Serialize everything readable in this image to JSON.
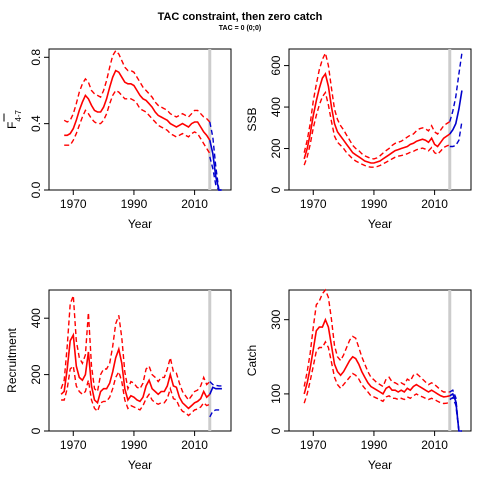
{
  "figure": {
    "title": "TAC constraint, then zero catch",
    "subtitle": "TAC = 0 (0;0)"
  },
  "colors": {
    "historical": "#ff0000",
    "projection": "#0000cc",
    "marker": "#cccccc"
  },
  "chart_data": [
    {
      "type": "line",
      "xlabel": "Year",
      "ylabel": "F",
      "ylabel_sub": "4-7",
      "xlim": [
        1962,
        2022
      ],
      "ylim": [
        0,
        0.85
      ],
      "xticks": [
        1970,
        1990,
        2010
      ],
      "yticks": [
        0.0,
        0.4,
        0.8
      ],
      "ytick_labels": [
        "0.0",
        "0.4",
        "0.8"
      ],
      "vline": 2015,
      "historical": {
        "x": [
          1967,
          1968,
          1969,
          1970,
          1971,
          1972,
          1973,
          1974,
          1975,
          1976,
          1977,
          1978,
          1979,
          1980,
          1981,
          1982,
          1983,
          1984,
          1985,
          1986,
          1987,
          1988,
          1989,
          1990,
          1991,
          1992,
          1993,
          1994,
          1995,
          1996,
          1997,
          1998,
          1999,
          2000,
          2001,
          2002,
          2003,
          2004,
          2005,
          2006,
          2007,
          2008,
          2009,
          2010,
          2011,
          2012,
          2013,
          2014,
          2015
        ],
        "mid": [
          0.33,
          0.33,
          0.34,
          0.37,
          0.42,
          0.48,
          0.53,
          0.57,
          0.55,
          0.51,
          0.48,
          0.47,
          0.47,
          0.5,
          0.55,
          0.62,
          0.68,
          0.72,
          0.71,
          0.68,
          0.65,
          0.64,
          0.64,
          0.63,
          0.6,
          0.57,
          0.55,
          0.54,
          0.52,
          0.5,
          0.47,
          0.45,
          0.44,
          0.43,
          0.42,
          0.4,
          0.39,
          0.38,
          0.39,
          0.4,
          0.39,
          0.38,
          0.4,
          0.41,
          0.41,
          0.38,
          0.35,
          0.33,
          0.3
        ],
        "upper": [
          0.42,
          0.41,
          0.42,
          0.46,
          0.52,
          0.59,
          0.64,
          0.67,
          0.65,
          0.6,
          0.58,
          0.57,
          0.56,
          0.6,
          0.66,
          0.74,
          0.81,
          0.84,
          0.82,
          0.78,
          0.74,
          0.72,
          0.72,
          0.71,
          0.68,
          0.65,
          0.62,
          0.6,
          0.58,
          0.56,
          0.53,
          0.51,
          0.5,
          0.49,
          0.48,
          0.46,
          0.45,
          0.44,
          0.45,
          0.46,
          0.45,
          0.44,
          0.46,
          0.48,
          0.48,
          0.46,
          0.44,
          0.43,
          0.41
        ],
        "lower": [
          0.27,
          0.27,
          0.27,
          0.3,
          0.34,
          0.39,
          0.44,
          0.48,
          0.46,
          0.43,
          0.41,
          0.4,
          0.4,
          0.42,
          0.46,
          0.52,
          0.57,
          0.6,
          0.59,
          0.57,
          0.55,
          0.55,
          0.55,
          0.54,
          0.52,
          0.49,
          0.48,
          0.47,
          0.45,
          0.43,
          0.41,
          0.39,
          0.38,
          0.37,
          0.36,
          0.34,
          0.33,
          0.32,
          0.33,
          0.34,
          0.33,
          0.32,
          0.34,
          0.35,
          0.34,
          0.31,
          0.28,
          0.25,
          0.22
        ]
      },
      "projection": {
        "x": [
          2015,
          2016,
          2017,
          2018,
          2019
        ],
        "mid": [
          0.3,
          0.22,
          0.08,
          0.0,
          0.0
        ],
        "upper": [
          0.41,
          0.32,
          0.14,
          0.0,
          0.0
        ],
        "lower": [
          0.2,
          0.13,
          0.03,
          0.0,
          0.0
        ]
      }
    },
    {
      "type": "line",
      "xlabel": "Year",
      "ylabel": "SSB",
      "xlim": [
        1962,
        2022
      ],
      "ylim": [
        0,
        680
      ],
      "xticks": [
        1970,
        1990,
        2010
      ],
      "yticks": [
        0,
        200,
        400,
        600
      ],
      "ytick_labels": [
        "0",
        "200",
        "400",
        "600"
      ],
      "vline": 2015,
      "historical": {
        "x": [
          1967,
          1968,
          1969,
          1970,
          1971,
          1972,
          1973,
          1974,
          1975,
          1976,
          1977,
          1978,
          1979,
          1980,
          1981,
          1982,
          1983,
          1984,
          1985,
          1986,
          1987,
          1988,
          1989,
          1990,
          1991,
          1992,
          1993,
          1994,
          1995,
          1996,
          1997,
          1998,
          1999,
          2000,
          2001,
          2002,
          2003,
          2004,
          2005,
          2006,
          2007,
          2008,
          2009,
          2010,
          2011,
          2012,
          2013,
          2014,
          2015
        ],
        "mid": [
          150,
          200,
          270,
          360,
          430,
          490,
          540,
          560,
          500,
          400,
          320,
          280,
          260,
          240,
          220,
          200,
          180,
          170,
          160,
          150,
          140,
          135,
          130,
          130,
          135,
          140,
          150,
          160,
          170,
          180,
          190,
          195,
          200,
          205,
          210,
          220,
          225,
          235,
          240,
          245,
          240,
          230,
          250,
          220,
          210,
          230,
          250,
          260,
          270
        ],
        "upper": [
          180,
          240,
          320,
          430,
          510,
          580,
          630,
          660,
          600,
          490,
          390,
          340,
          310,
          290,
          265,
          240,
          215,
          200,
          190,
          175,
          165,
          158,
          152,
          150,
          155,
          165,
          178,
          190,
          200,
          215,
          225,
          230,
          235,
          245,
          255,
          265,
          270,
          285,
          295,
          300,
          295,
          285,
          310,
          280,
          270,
          290,
          310,
          320,
          330
        ],
        "lower": [
          120,
          160,
          220,
          300,
          360,
          410,
          450,
          470,
          410,
          330,
          260,
          230,
          215,
          200,
          180,
          165,
          150,
          140,
          132,
          125,
          118,
          113,
          110,
          110,
          113,
          118,
          126,
          134,
          142,
          150,
          158,
          163,
          166,
          170,
          175,
          182,
          186,
          194,
          198,
          202,
          197,
          189,
          205,
          180,
          172,
          188,
          205,
          212,
          218
        ]
      },
      "projection": {
        "x": [
          2015,
          2016,
          2017,
          2018,
          2019
        ],
        "mid": [
          270,
          290,
          320,
          390,
          480
        ],
        "upper": [
          330,
          380,
          450,
          560,
          660
        ],
        "lower": [
          210,
          210,
          215,
          240,
          330
        ]
      }
    },
    {
      "type": "line",
      "xlabel": "Year",
      "ylabel": "Recruitment",
      "xlim": [
        1962,
        2022
      ],
      "ylim": [
        0,
        500
      ],
      "xticks": [
        1970,
        1990,
        2010
      ],
      "yticks": [
        0,
        200,
        400
      ],
      "ytick_labels": [
        "0",
        "200",
        "400"
      ],
      "vline": 2015,
      "historical": {
        "x": [
          1966,
          1967,
          1968,
          1969,
          1970,
          1971,
          1972,
          1973,
          1974,
          1975,
          1976,
          1977,
          1978,
          1979,
          1980,
          1981,
          1982,
          1983,
          1984,
          1985,
          1986,
          1987,
          1988,
          1989,
          1990,
          1991,
          1992,
          1993,
          1994,
          1995,
          1996,
          1997,
          1998,
          1999,
          2000,
          2001,
          2002,
          2003,
          2004,
          2005,
          2006,
          2007,
          2008,
          2009,
          2010,
          2011,
          2012,
          2013,
          2014,
          2015
        ],
        "mid": [
          130,
          140,
          220,
          320,
          340,
          230,
          190,
          180,
          200,
          280,
          160,
          110,
          100,
          140,
          150,
          150,
          170,
          210,
          260,
          290,
          240,
          150,
          110,
          125,
          120,
          110,
          105,
          120,
          160,
          180,
          150,
          140,
          130,
          140,
          140,
          160,
          200,
          160,
          155,
          120,
          100,
          90,
          80,
          90,
          100,
          105,
          115,
          140,
          120,
          130
        ],
        "upper": [
          150,
          180,
          300,
          450,
          480,
          320,
          260,
          240,
          270,
          420,
          230,
          150,
          140,
          200,
          220,
          220,
          240,
          300,
          380,
          410,
          330,
          210,
          150,
          175,
          170,
          155,
          150,
          170,
          220,
          230,
          200,
          190,
          175,
          190,
          190,
          220,
          260,
          210,
          205,
          170,
          140,
          125,
          110,
          125,
          140,
          145,
          160,
          190,
          165,
          175
        ],
        "lower": [
          110,
          110,
          150,
          220,
          230,
          160,
          140,
          130,
          140,
          180,
          110,
          80,
          70,
          100,
          105,
          105,
          120,
          150,
          190,
          210,
          175,
          110,
          80,
          90,
          85,
          80,
          75,
          90,
          115,
          130,
          110,
          100,
          95,
          100,
          100,
          115,
          150,
          115,
          110,
          85,
          70,
          65,
          55,
          65,
          75,
          78,
          85,
          100,
          90,
          95
        ]
      },
      "projection": {
        "x": [
          2015,
          2016,
          2017,
          2018,
          2019
        ],
        "mid": [
          130,
          155,
          150,
          150,
          150
        ],
        "upper": [
          175,
          165,
          162,
          160,
          160
        ],
        "lower": [
          50,
          70,
          75,
          75,
          75
        ]
      }
    },
    {
      "type": "line",
      "xlabel": "Year",
      "ylabel": "Catch",
      "xlim": [
        1962,
        2022
      ],
      "ylim": [
        0,
        380
      ],
      "xticks": [
        1970,
        1990,
        2010
      ],
      "yticks": [
        0,
        100,
        300
      ],
      "ytick_labels": [
        "0",
        "100",
        "300"
      ],
      "vline": 2015,
      "historical": {
        "x": [
          1967,
          1968,
          1969,
          1970,
          1971,
          1972,
          1973,
          1974,
          1975,
          1976,
          1977,
          1978,
          1979,
          1980,
          1981,
          1982,
          1983,
          1984,
          1985,
          1986,
          1987,
          1988,
          1989,
          1990,
          1991,
          1992,
          1993,
          1994,
          1995,
          1996,
          1997,
          1998,
          1999,
          2000,
          2001,
          2002,
          2003,
          2004,
          2005,
          2006,
          2007,
          2008,
          2009,
          2010,
          2011,
          2012,
          2013,
          2014,
          2015
        ],
        "mid": [
          100,
          130,
          170,
          220,
          270,
          280,
          280,
          300,
          280,
          230,
          180,
          160,
          150,
          160,
          175,
          190,
          200,
          195,
          180,
          160,
          145,
          130,
          120,
          115,
          110,
          105,
          100,
          115,
          120,
          110,
          110,
          105,
          110,
          105,
          115,
          110,
          120,
          125,
          120,
          115,
          110,
          105,
          110,
          105,
          100,
          95,
          92,
          93,
          95
        ],
        "upper": [
          120,
          160,
          210,
          280,
          340,
          350,
          370,
          380,
          360,
          300,
          230,
          200,
          190,
          205,
          225,
          245,
          255,
          250,
          225,
          200,
          180,
          160,
          145,
          138,
          130,
          125,
          120,
          140,
          145,
          132,
          130,
          125,
          130,
          125,
          140,
          135,
          150,
          155,
          148,
          140,
          132,
          125,
          130,
          125,
          118,
          110,
          105,
          105,
          105
        ],
        "lower": [
          75,
          100,
          135,
          175,
          215,
          225,
          225,
          240,
          225,
          185,
          145,
          125,
          115,
          125,
          135,
          145,
          155,
          150,
          140,
          125,
          115,
          105,
          95,
          92,
          88,
          84,
          80,
          92,
          95,
          88,
          88,
          85,
          88,
          85,
          92,
          88,
          95,
          100,
          95,
          92,
          88,
          85,
          88,
          85,
          80,
          76,
          74,
          75,
          78
        ]
      },
      "projection": {
        "x": [
          2015,
          2016,
          2017,
          2018,
          2019
        ],
        "mid": [
          95,
          100,
          80,
          0,
          0
        ],
        "upper": [
          105,
          110,
          90,
          0,
          0
        ],
        "lower": [
          85,
          90,
          70,
          0,
          0
        ]
      }
    }
  ]
}
